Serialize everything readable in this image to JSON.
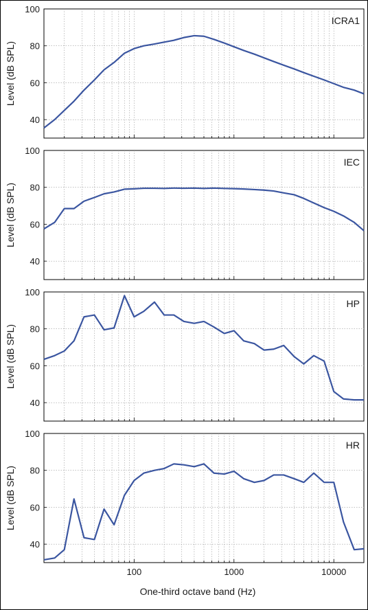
{
  "chart_data": {
    "type": "line",
    "xlabel": "One-third octave band (Hz)",
    "xscale": "log",
    "xlim": [
      12.5,
      20000
    ],
    "xticks": [
      100,
      1000,
      10000
    ],
    "xtick_labels": [
      "100",
      "1000",
      "10000"
    ],
    "x": [
      12.5,
      16,
      20,
      25,
      31.5,
      40,
      50,
      63,
      80,
      100,
      125,
      160,
      200,
      250,
      315,
      400,
      500,
      630,
      800,
      1000,
      1250,
      1600,
      2000,
      2500,
      3150,
      4000,
      5000,
      6300,
      8000,
      10000,
      12500,
      16000,
      20000
    ],
    "grid": true,
    "panels": [
      {
        "label": "ICRA1",
        "ylabel": "Level (dB SPL)",
        "ylim": [
          30,
          100
        ],
        "yticks": [
          40,
          60,
          80,
          100
        ],
        "ytick_labels": [
          "40",
          "60",
          "80",
          "100"
        ],
        "values": [
          35.5,
          40,
          45,
          50,
          56,
          61.5,
          67,
          71,
          76,
          78.5,
          80,
          81,
          82,
          83,
          84.5,
          85.5,
          85.2,
          83.5,
          81.5,
          79.5,
          77.5,
          75.5,
          73.5,
          71.5,
          69.5,
          67.5,
          65.5,
          63.5,
          61.5,
          59.5,
          57.5,
          56,
          54
        ]
      },
      {
        "label": "IEC",
        "ylabel": "Level (dB SPL)",
        "ylim": [
          30,
          100
        ],
        "yticks": [
          40,
          60,
          80,
          100
        ],
        "ytick_labels": [
          "40",
          "60",
          "80",
          "100"
        ],
        "values": [
          57.5,
          61,
          68.5,
          68.5,
          72.5,
          74.5,
          76.5,
          77.5,
          79,
          79.2,
          79.5,
          79.5,
          79.4,
          79.6,
          79.5,
          79.6,
          79.4,
          79.6,
          79.4,
          79.3,
          79.1,
          78.8,
          78.5,
          78,
          77,
          76,
          74,
          71.5,
          69,
          67,
          64.5,
          61,
          56.5
        ]
      },
      {
        "label": "HP",
        "ylabel": "Level (dB SPL)",
        "ylim": [
          30,
          100
        ],
        "yticks": [
          40,
          60,
          80,
          100
        ],
        "ytick_labels": [
          "40",
          "60",
          "80",
          "100"
        ],
        "values": [
          63.5,
          65.5,
          68,
          73.5,
          86.5,
          87.5,
          79.5,
          80.5,
          98,
          86.5,
          89.5,
          94.5,
          87.5,
          87.5,
          84,
          83,
          84,
          81,
          77.5,
          79,
          73.5,
          72,
          68.5,
          69,
          71,
          65,
          61,
          65.5,
          62.5,
          46,
          42,
          41.5,
          41.5
        ]
      },
      {
        "label": "HR",
        "ylabel": "Level (dB SPL)",
        "ylim": [
          30,
          100
        ],
        "yticks": [
          40,
          60,
          80,
          100
        ],
        "ytick_labels": [
          "40",
          "60",
          "80",
          "100"
        ],
        "values": [
          31.5,
          32.5,
          37,
          64.5,
          43.5,
          42.5,
          59,
          50.5,
          66.5,
          74.5,
          78.5,
          80,
          81,
          83.5,
          83,
          82,
          83.5,
          78.5,
          78,
          79.5,
          75.5,
          73.5,
          74.5,
          77.5,
          77.5,
          75.5,
          73.5,
          78.5,
          73.5,
          73.5,
          52,
          37,
          37.5
        ]
      }
    ]
  }
}
